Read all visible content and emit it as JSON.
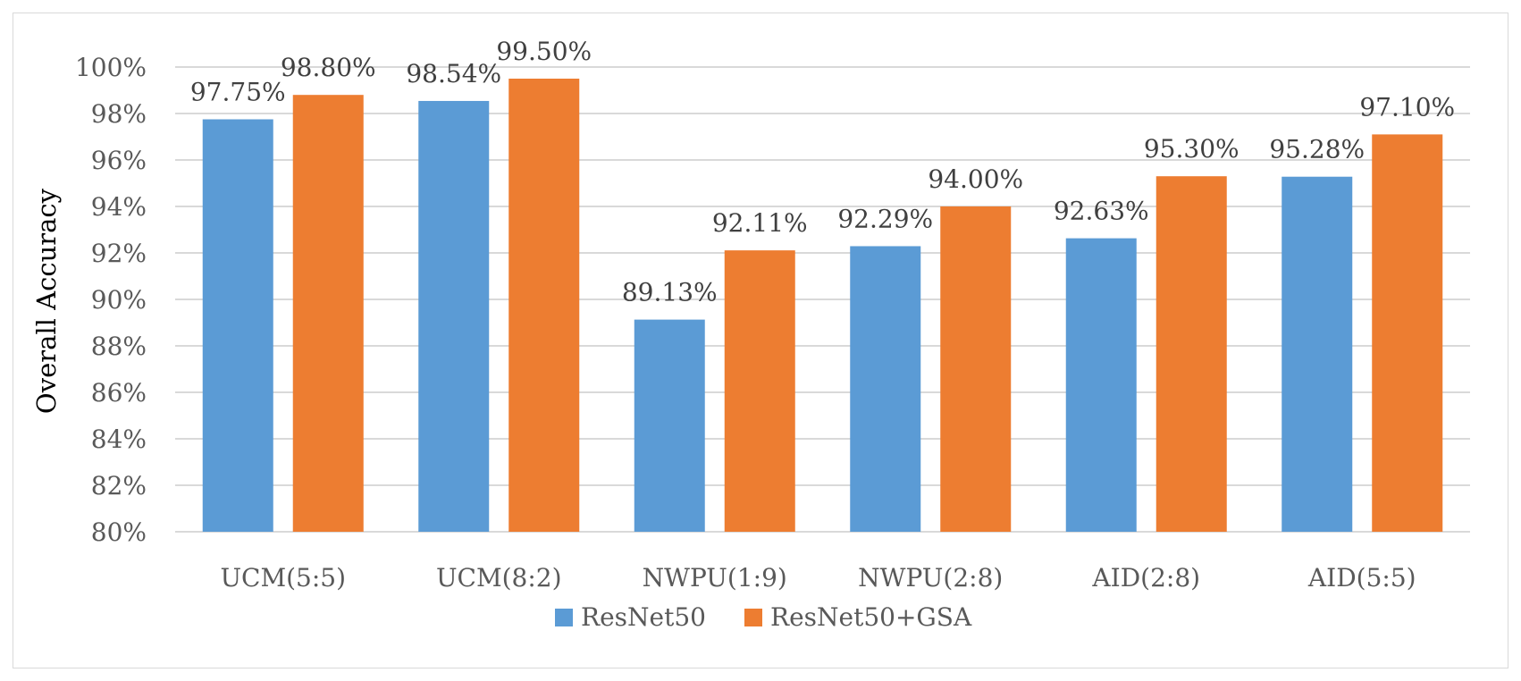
{
  "chart_data": {
    "type": "bar",
    "title": "",
    "xlabel": "",
    "ylabel": "Overall Accuracy",
    "categories": [
      "UCM(5:5)",
      "UCM(8:2)",
      "NWPU(1:9)",
      "NWPU(2:8)",
      "AID(2:8)",
      "AID(5:5)"
    ],
    "series": [
      {
        "name": "ResNet50",
        "color": "#5B9BD5",
        "values": [
          97.75,
          98.54,
          89.13,
          92.29,
          92.63,
          95.28
        ],
        "labels": [
          "97.75%",
          "98.54%",
          "89.13%",
          "92.29%",
          "92.63%",
          "95.28%"
        ]
      },
      {
        "name": "ResNet50+GSA",
        "color": "#ED7D31",
        "values": [
          98.8,
          99.5,
          92.11,
          94.0,
          95.3,
          97.1
        ],
        "labels": [
          "98.80%",
          "99.50%",
          "92.11%",
          "94.00%",
          "95.30%",
          "97.10%"
        ]
      }
    ],
    "ylim": [
      80,
      100
    ],
    "yticks": [
      80,
      82,
      84,
      86,
      88,
      90,
      92,
      94,
      96,
      98,
      100
    ],
    "ytick_labels": [
      "80%",
      "82%",
      "84%",
      "86%",
      "88%",
      "90%",
      "92%",
      "94%",
      "96%",
      "98%",
      "100%"
    ],
    "grid": true,
    "gridline_color": "#d9d9d9",
    "legend_position": "bottom"
  }
}
